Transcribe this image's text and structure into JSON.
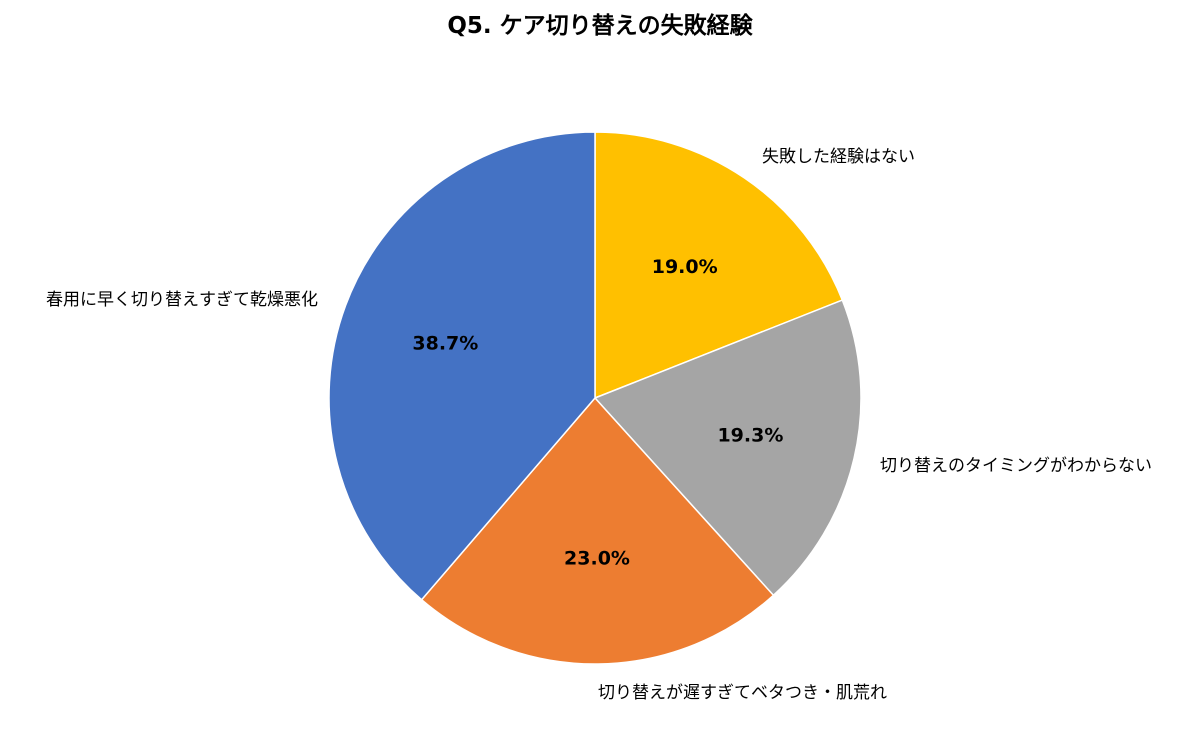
{
  "chart_data": {
    "type": "pie",
    "title": "Q5. ケア切り替えの失敗経験",
    "start_angle_deg": 0,
    "direction": "clockwise",
    "slices": [
      {
        "label": "失敗した経験はない",
        "value": 19.0,
        "value_label": "19.0%",
        "color": "#FFC000"
      },
      {
        "label": "切り替えのタイミングがわからない",
        "value": 19.3,
        "value_label": "19.3%",
        "color": "#A5A5A5"
      },
      {
        "label": "切り替えが遅すぎてベタつき・肌荒れ",
        "value": 23.0,
        "value_label": "23.0%",
        "color": "#ED7D31"
      },
      {
        "label": "春用に早く切り替えすぎて乾燥悪化",
        "value": 38.7,
        "value_label": "38.7%",
        "color": "#4472C4"
      }
    ]
  }
}
